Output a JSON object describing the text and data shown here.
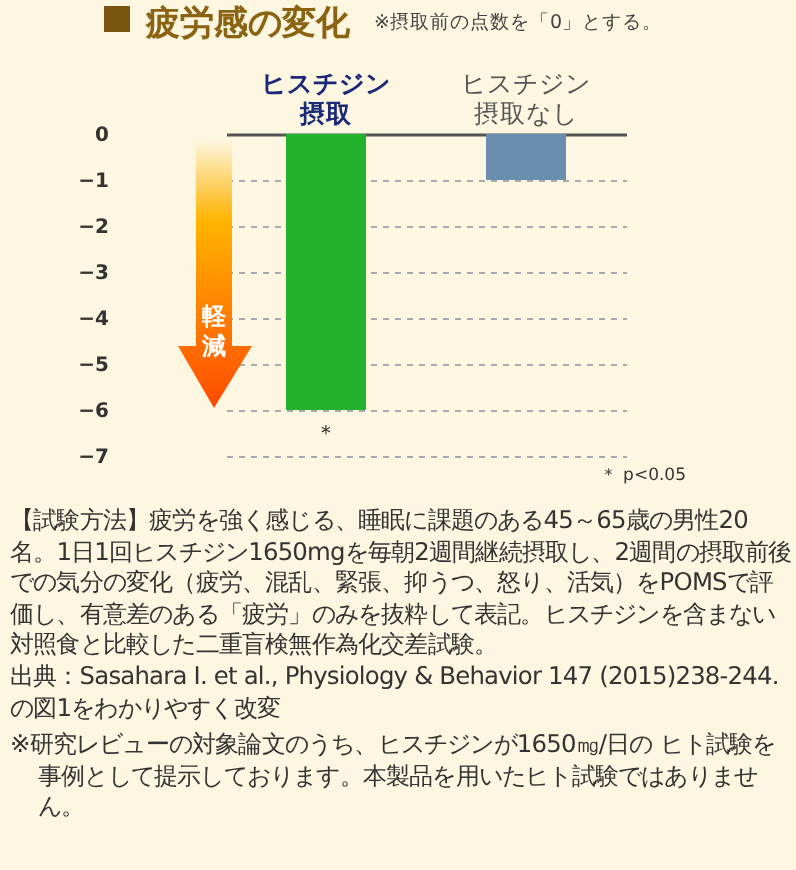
{
  "chart_data": {
    "type": "bar",
    "title": "疲労感の変化",
    "subtitle": "※摂取前の点数を「0」とする。",
    "categories": [
      "ヒスチジン摂取",
      "ヒスチジン摂取なし"
    ],
    "values": [
      -6,
      -1
    ],
    "colors": [
      "#22b22e",
      "#6a8fae"
    ],
    "ylim": [
      -7,
      0
    ],
    "yticks": [
      0,
      -1,
      -2,
      -3,
      -4,
      -5,
      -6,
      -7
    ],
    "grid": "y",
    "annotations": [
      {
        "text": "＊",
        "x": "ヒスチジン摂取",
        "y": -6
      },
      "＊ p<0.05",
      "軽減",
      "【試験方法】疲労を強く感じる、睡眠に課題のある45～65歳の男性20名。1日1回ヒスチジン1650mgを毎朝2週間継続摂取し、2週間の摂取前後での気分の変化（疲労、混乱、緊張、抑うつ、怒り、活気）をPOMSで評価し、有意差のある「疲労」のみを抜粋して表記。ヒスチジンを含まない対照食と比較した二重盲検無作為化交差試験。",
      "出典：Sasahara I. et al., Physiology & Behavior 147 (2015)238-244.の図1をわかりやすく改変",
      "※研究レビューの対象論文のうち、ヒスチジンが1650㎎/日の ヒト試験を事例として提示しております。本製品を用いたヒト試験ではありません。"
    ]
  }
}
